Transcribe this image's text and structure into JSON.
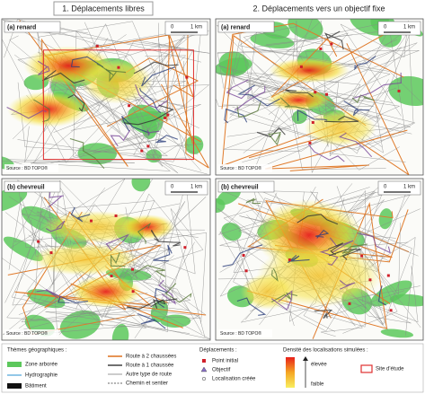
{
  "columns": [
    {
      "title": "1. Déplacements libres"
    },
    {
      "title": "2. Déplacements vers un objectif fixe"
    }
  ],
  "panels": [
    {
      "label": "(a) renard",
      "scale_zero": "0",
      "scale_km": "1 km",
      "source": "Source : BD TOPO®"
    },
    {
      "label": "(a) renard",
      "scale_zero": "0",
      "scale_km": "1 km",
      "source": "Source : BD TOPO®"
    },
    {
      "label": "(b) chevreuil",
      "scale_zero": "0",
      "scale_km": "1 km",
      "source": "Source : BD TOPO®"
    },
    {
      "label": "(b) chevreuil",
      "scale_zero": "0",
      "scale_km": "1 km",
      "source": "Source : BD TOPO®"
    }
  ],
  "legend": {
    "themes": {
      "title": "Thèmes géographiques :",
      "items": [
        "Zone arborée",
        "Hydrographie",
        "Bâtiment"
      ]
    },
    "roads": {
      "items": [
        "Route à 2 chaussées",
        "Route à 1 chaussée",
        "Autre type de route",
        "Chemin et sentier"
      ]
    },
    "moves": {
      "title": "Déplacements :",
      "items": [
        "Point initial",
        "Objectif",
        "Localisation créée"
      ]
    },
    "density": {
      "title": "Densité des localisations simulées :",
      "high": "élevée",
      "low": "faible"
    },
    "site": "Site d'étude"
  }
}
